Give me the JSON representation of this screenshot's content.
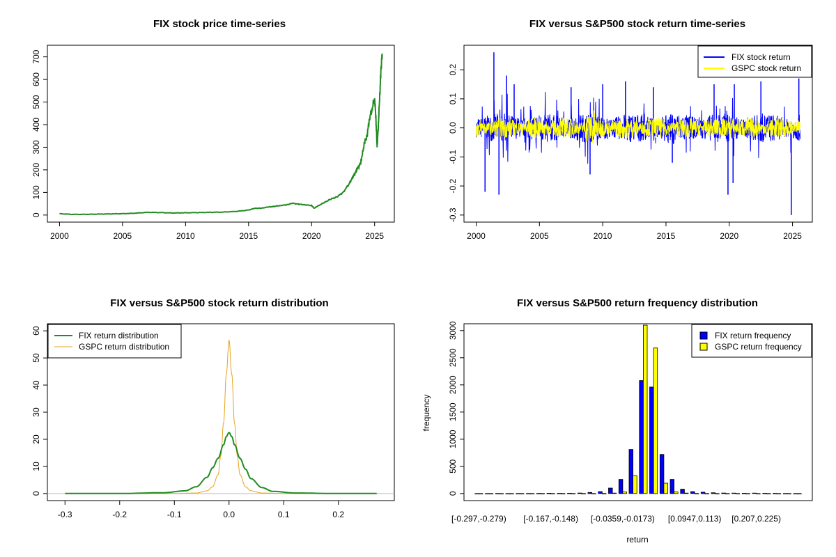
{
  "chart_data": [
    {
      "type": "line",
      "title": "FIX stock price time-series",
      "xlabel": "",
      "ylabel": "",
      "xlim": [
        2000,
        2025.6
      ],
      "ylim": [
        0,
        720
      ],
      "xticks": [
        "2000",
        "2005",
        "2010",
        "2015",
        "2020",
        "2025"
      ],
      "yticks": [
        "0",
        "100",
        "200",
        "300",
        "400",
        "500",
        "600",
        "700"
      ],
      "grid": false,
      "series": [
        {
          "color": "#228B22",
          "x": [
            2000.0,
            2001.0,
            2002.0,
            2003.0,
            2004.0,
            2005.0,
            2006.0,
            2007.0,
            2008.0,
            2009.0,
            2010.0,
            2011.0,
            2012.0,
            2013.0,
            2014.0,
            2015.0,
            2015.5,
            2016.0,
            2016.5,
            2017.0,
            2017.5,
            2018.0,
            2018.5,
            2019.0,
            2019.5,
            2020.0,
            2020.2,
            2020.5,
            2021.0,
            2021.5,
            2022.0,
            2022.5,
            2023.0,
            2023.3,
            2023.6,
            2023.9,
            2024.0,
            2024.2,
            2024.4,
            2024.6,
            2024.8,
            2025.0,
            2025.1,
            2025.2,
            2025.3,
            2025.4,
            2025.5,
            2025.6
          ],
          "y": [
            6,
            3,
            3,
            4,
            5,
            6,
            8,
            12,
            11,
            9,
            10,
            11,
            12,
            13,
            16,
            22,
            30,
            30,
            35,
            38,
            42,
            45,
            52,
            48,
            45,
            42,
            30,
            40,
            55,
            70,
            80,
            100,
            140,
            170,
            200,
            230,
            260,
            320,
            350,
            430,
            470,
            520,
            430,
            300,
            400,
            520,
            640,
            715
          ]
        }
      ]
    },
    {
      "type": "line",
      "title": "FIX versus S&P500 stock return time-series",
      "xlabel": "",
      "ylabel": "",
      "xlim": [
        2000,
        2025.6
      ],
      "ylim": [
        -0.3,
        0.26
      ],
      "xticks": [
        "2000",
        "2005",
        "2010",
        "2015",
        "2020",
        "2025"
      ],
      "yticks": [
        "-0.3",
        "-0.2",
        "-0.1",
        "0.0",
        "0.1",
        "0.2"
      ],
      "legend": "top-right",
      "series": [
        {
          "name": "FIX stock return",
          "color": "#0000FF",
          "spikes": [
            [
              2001.4,
              0.26
            ],
            [
              2001.8,
              -0.23
            ],
            [
              2000.7,
              -0.22
            ],
            [
              2002.4,
              0.18
            ],
            [
              2003.0,
              0.15
            ],
            [
              2007.5,
              0.14
            ],
            [
              2009.0,
              -0.16
            ],
            [
              2010.0,
              0.15
            ],
            [
              2011.8,
              0.16
            ],
            [
              2014.0,
              0.14
            ],
            [
              2015.5,
              -0.12
            ],
            [
              2018.8,
              0.15
            ],
            [
              2019.9,
              -0.23
            ],
            [
              2020.3,
              -0.19
            ],
            [
              2020.4,
              0.15
            ],
            [
              2022.5,
              0.16
            ],
            [
              2024.9,
              -0.3
            ],
            [
              2025.5,
              0.17
            ]
          ]
        },
        {
          "name": "GSPC stock return",
          "color": "#FFFF00",
          "band": 0.035
        }
      ]
    },
    {
      "type": "line",
      "title": "FIX versus S&P500 stock return distribution",
      "xlabel": "",
      "ylabel": "",
      "xlim": [
        -0.31,
        0.28
      ],
      "ylim": [
        0,
        60
      ],
      "xticks": [
        "-0.3",
        "-0.2",
        "-0.1",
        "0.0",
        "0.1",
        "0.2"
      ],
      "yticks": [
        "0",
        "10",
        "20",
        "30",
        "40",
        "50",
        "60"
      ],
      "legend": "top-left",
      "series": [
        {
          "name": "FIX return distribution",
          "color": "#228B22",
          "x": [
            -0.3,
            -0.2,
            -0.12,
            -0.08,
            -0.06,
            -0.04,
            -0.03,
            -0.02,
            -0.01,
            -0.005,
            0.0,
            0.005,
            0.01,
            0.02,
            0.03,
            0.04,
            0.06,
            0.08,
            0.12,
            0.2,
            0.27
          ],
          "y": [
            0,
            0,
            0.3,
            1.0,
            2.5,
            6.0,
            9.5,
            13.0,
            18.0,
            21.0,
            22.5,
            21.0,
            18.0,
            13.0,
            9.0,
            5.5,
            2.2,
            0.8,
            0.2,
            0,
            0
          ]
        },
        {
          "name": "GSPC return distribution",
          "color": "#E6A21E",
          "x": [
            -0.3,
            -0.1,
            -0.06,
            -0.04,
            -0.03,
            -0.02,
            -0.015,
            -0.01,
            -0.005,
            0.0,
            0.005,
            0.01,
            0.015,
            0.02,
            0.03,
            0.04,
            0.06,
            0.1,
            0.27
          ],
          "y": [
            0,
            0,
            0.2,
            1.0,
            2.5,
            7.0,
            14.0,
            26.0,
            44.0,
            56.5,
            44.0,
            26.0,
            14.0,
            7.0,
            2.5,
            1.0,
            0.2,
            0,
            0
          ]
        }
      ]
    },
    {
      "type": "bar",
      "title": "FIX versus S&P500 return frequency distribution",
      "xlabel": "return",
      "ylabel": "frequency",
      "ylim": [
        0,
        3100
      ],
      "yticks": [
        "0",
        "500",
        "1000",
        "1500",
        "2000",
        "2500",
        "3000"
      ],
      "xtick_labels": [
        "[-0.297,-0.279)",
        "[-0.167,-0.148)",
        "[-0.0359,-0.0173)",
        "[0.0947,0.113)",
        "[0.207,0.225)"
      ],
      "xtick_bins": [
        0,
        7,
        14,
        21,
        27
      ],
      "legend": "top-right",
      "series": [
        {
          "name": "FIX return frequency",
          "color": "#0000FF",
          "values": [
            1,
            1,
            2,
            1,
            2,
            2,
            3,
            5,
            4,
            6,
            10,
            20,
            35,
            100,
            260,
            810,
            2080,
            1960,
            720,
            260,
            80,
            35,
            25,
            15,
            10,
            8,
            6,
            8,
            4,
            3,
            2,
            1
          ]
        },
        {
          "name": "GSPC return frequency",
          "color": "#FFFF00",
          "values": [
            0,
            0,
            0,
            0,
            0,
            0,
            0,
            0,
            0,
            0,
            0,
            0,
            2,
            8,
            30,
            330,
            3100,
            2680,
            190,
            30,
            8,
            2,
            0,
            0,
            0,
            0,
            0,
            0,
            0,
            0,
            0,
            0
          ]
        }
      ]
    }
  ]
}
